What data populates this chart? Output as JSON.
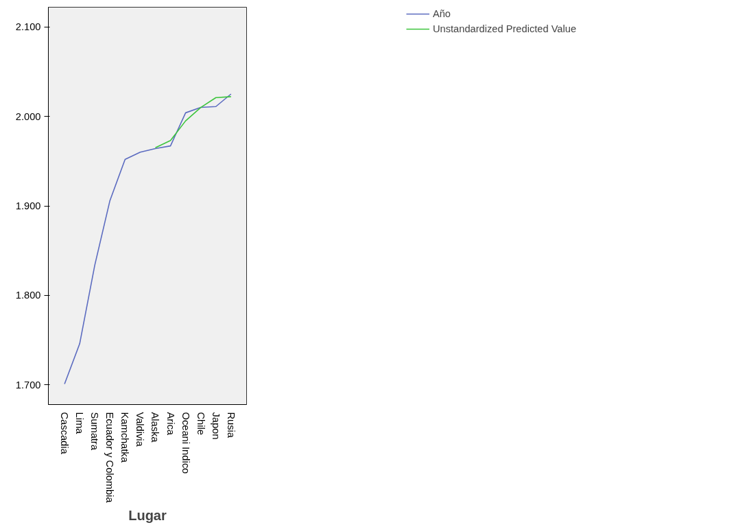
{
  "chart_data": {
    "type": "line",
    "xlabel": "Lugar",
    "categories": [
      "Cascadia",
      "Lima",
      "Sumatra",
      "Ecuador y Colombia",
      "Kamchatka",
      "Valdivia",
      "Alaska",
      "Arica",
      "Oceani Indico",
      "Chile",
      "Japon",
      "Rusia"
    ],
    "series": [
      {
        "name": "Año",
        "color": "#5b6bc0",
        "values": [
          1701,
          1746,
          1834,
          1906,
          1952,
          1960,
          1964,
          1967,
          2004,
          2010,
          2011,
          2025
        ]
      },
      {
        "name": "Unstandardized Predicted Value",
        "color": "#3cc43c",
        "values": [
          null,
          null,
          null,
          null,
          null,
          null,
          1965,
          1973,
          1995,
          2010,
          2021,
          2022
        ]
      }
    ],
    "ylim": [
      1678,
      2122
    ],
    "yticks": [
      {
        "value": 1700,
        "label": "1.700"
      },
      {
        "value": 1800,
        "label": "1.800"
      },
      {
        "value": 1900,
        "label": "1.900"
      },
      {
        "value": 2000,
        "label": "2.000"
      },
      {
        "value": 2100,
        "label": "2.100"
      }
    ],
    "grid": false,
    "legend": "top right",
    "line_style": "solid",
    "marker": "none"
  }
}
